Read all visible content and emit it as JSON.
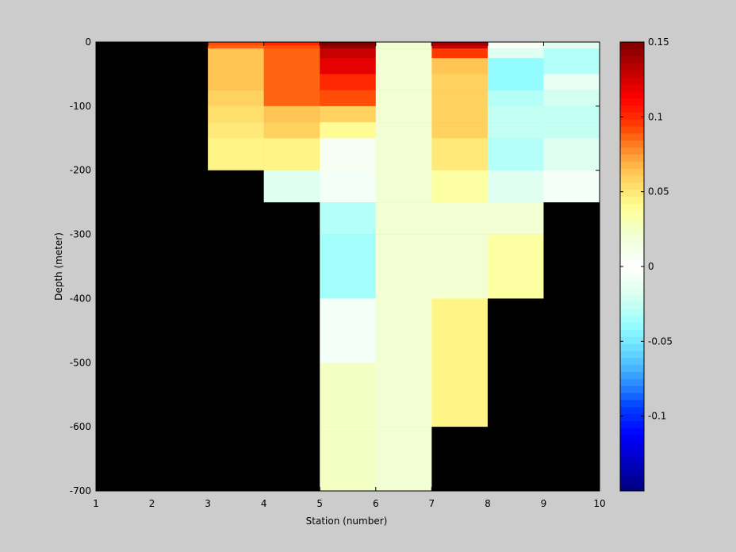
{
  "chart_data": {
    "type": "heatmap",
    "title": "",
    "xlabel": "Station (number)",
    "ylabel": "Depth (meter)",
    "xlim": [
      1,
      10
    ],
    "ylim": [
      -700,
      0
    ],
    "xticks": [
      1,
      2,
      3,
      4,
      5,
      6,
      7,
      8,
      9,
      10
    ],
    "xtick_labels": [
      "1",
      "2",
      "3",
      "4",
      "5",
      "6",
      "7",
      "8",
      "9",
      "10"
    ],
    "yticks": [
      0,
      -100,
      -200,
      -300,
      -400,
      -500,
      -600,
      -700
    ],
    "ytick_labels": [
      "0",
      "-100",
      "-200",
      "-300",
      "-400",
      "-500",
      "-600",
      "-700"
    ],
    "colorbar": {
      "colormap": "jet-like",
      "range": [
        -0.15,
        0.15
      ],
      "ticks": [
        0.15,
        0.1,
        0.05,
        0,
        -0.05,
        -0.1
      ],
      "tick_labels": [
        "0.15",
        "0.1",
        "0.05",
        "0",
        "-0.05",
        "-0.1"
      ]
    },
    "no_data_color": "#000000",
    "depth_bins": [
      0,
      -5,
      -10,
      -25,
      -50,
      -75,
      -100,
      -125,
      -150,
      -200,
      -250,
      -300,
      -400,
      -500,
      -600,
      -700
    ],
    "columns": [
      {
        "x0": 1,
        "x1": 2,
        "values": [
          null,
          null,
          null,
          null,
          null,
          null,
          null,
          null,
          null,
          null,
          null,
          null,
          null,
          null,
          null
        ]
      },
      {
        "x0": 2,
        "x1": 3,
        "values": [
          null,
          null,
          null,
          null,
          null,
          null,
          null,
          null,
          null,
          null,
          null,
          null,
          null,
          null,
          null
        ]
      },
      {
        "x0": 3,
        "x1": 4,
        "values": [
          0.09,
          0.085,
          0.065,
          0.065,
          0.065,
          0.06,
          0.055,
          0.048,
          0.045,
          null,
          null,
          null,
          null,
          null,
          null
        ]
      },
      {
        "x0": 4,
        "x1": 5,
        "values": [
          0.1,
          0.09,
          0.085,
          0.085,
          0.085,
          0.085,
          0.065,
          0.06,
          0.045,
          -0.015,
          null,
          null,
          null,
          null,
          null
        ]
      },
      {
        "x0": 5,
        "x1": 6,
        "values": [
          0.15,
          0.145,
          0.13,
          0.12,
          0.1,
          0.09,
          0.06,
          0.04,
          0.005,
          -0.008,
          -0.03,
          -0.035,
          -0.005,
          0.025,
          0.025
        ]
      },
      {
        "x0": 6,
        "x1": 7,
        "values": [
          0.02,
          0.02,
          0.02,
          0.02,
          0.02,
          0.02,
          0.02,
          0.02,
          0.02,
          0.02,
          0.02,
          0.02,
          0.02,
          0.02,
          0.02
        ]
      },
      {
        "x0": 7,
        "x1": 8,
        "values": [
          0.14,
          0.13,
          0.095,
          0.065,
          0.06,
          0.06,
          0.06,
          0.06,
          0.05,
          0.035,
          0.02,
          0.02,
          0.045,
          0.045,
          null
        ]
      },
      {
        "x0": 8,
        "x1": 9,
        "values": [
          0.005,
          0.005,
          -0.015,
          -0.038,
          -0.038,
          -0.03,
          -0.025,
          -0.025,
          -0.03,
          -0.018,
          0.02,
          0.035,
          null,
          null,
          null
        ]
      },
      {
        "x0": 9,
        "x1": 10,
        "values": [
          -0.015,
          -0.015,
          -0.03,
          -0.03,
          -0.01,
          -0.022,
          -0.025,
          -0.025,
          -0.018,
          -0.005,
          null,
          null,
          null,
          null,
          null
        ]
      }
    ]
  }
}
